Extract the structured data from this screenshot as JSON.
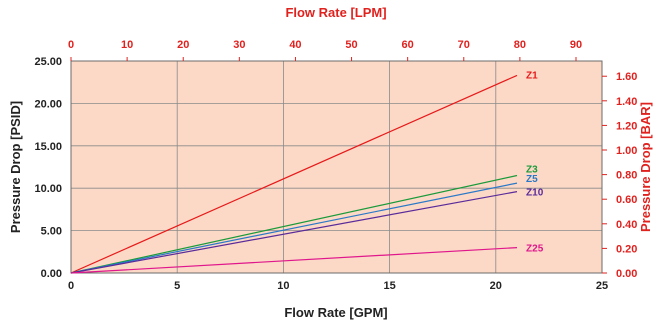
{
  "chart_data": {
    "type": "line",
    "xlabel": "Flow Rate [GPM]",
    "ylabel": "Pressure Drop [PSID]",
    "x2label": "Flow Rate [LPM]",
    "y2label": "Pressure Drop [BAR]",
    "xlim": [
      0,
      25
    ],
    "ylim": [
      0,
      25
    ],
    "x2lim": [
      0,
      94.635
    ],
    "y2lim": [
      0,
      1.7237
    ],
    "x_ticks": [
      "0",
      "5",
      "10",
      "15",
      "20",
      "25"
    ],
    "y_ticks": [
      "0.00",
      "5.00",
      "10.00",
      "15.00",
      "20.00",
      "25.00"
    ],
    "x2_ticks": [
      "0",
      "10",
      "20",
      "30",
      "40",
      "50",
      "60",
      "70",
      "80",
      "90"
    ],
    "y2_ticks": [
      "0.00",
      "0.20",
      "0.40",
      "0.60",
      "0.80",
      "1.00",
      "1.20",
      "1.40",
      "1.60"
    ],
    "grid": true,
    "plot_background": "#fbd9c6",
    "grid_color": "#8a8a8a",
    "secondary_axis_color": "#e0221f",
    "series": [
      {
        "name": "Z1",
        "color": "#e8191a",
        "x": [
          0,
          21
        ],
        "y": [
          0,
          23.3
        ]
      },
      {
        "name": "Z3",
        "color": "#1a9a3a",
        "x": [
          0,
          21
        ],
        "y": [
          0,
          11.5
        ]
      },
      {
        "name": "Z5",
        "color": "#2a78c8",
        "x": [
          0,
          21
        ],
        "y": [
          0,
          10.6
        ]
      },
      {
        "name": "Z10",
        "color": "#5a2a9a",
        "x": [
          0,
          21
        ],
        "y": [
          0,
          9.6
        ]
      },
      {
        "name": "Z25",
        "color": "#e0168c",
        "x": [
          0,
          21
        ],
        "y": [
          0,
          3.0
        ]
      }
    ]
  }
}
